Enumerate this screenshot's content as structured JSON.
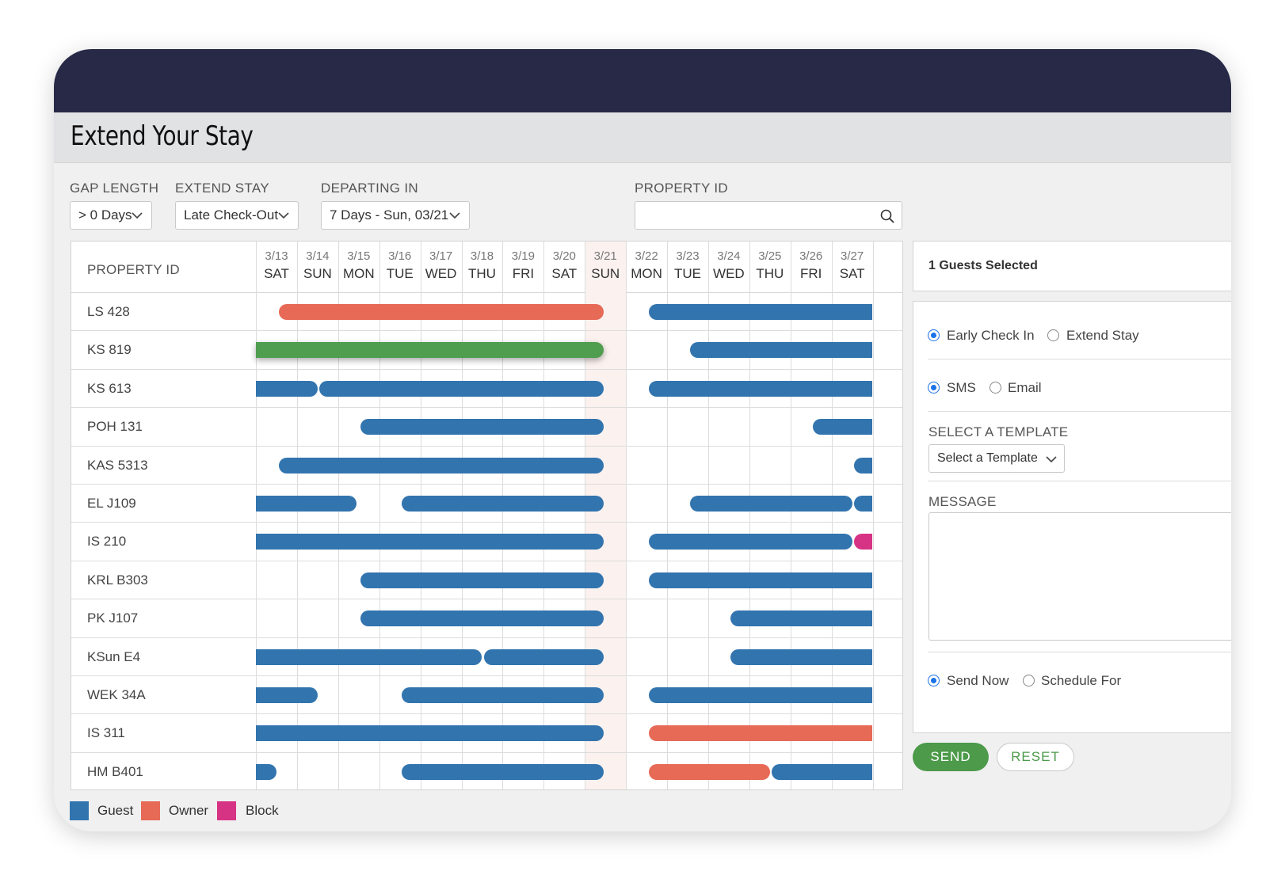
{
  "title": "Extend Your Stay",
  "filters": {
    "gap_length": {
      "label": "GAP LENGTH",
      "value": "> 0 Days"
    },
    "extend_stay": {
      "label": "EXTEND STAY",
      "value": "Late Check-Out"
    },
    "departing_in": {
      "label": "DEPARTING IN",
      "value": "7 Days - Sun, 03/21"
    },
    "property_id": {
      "label": "PROPERTY ID",
      "value": ""
    }
  },
  "grid": {
    "property_header": "PROPERTY ID",
    "highlight_day_index": 8,
    "days": [
      {
        "date": "3/13",
        "weekday": "SAT"
      },
      {
        "date": "3/14",
        "weekday": "SUN"
      },
      {
        "date": "3/15",
        "weekday": "MON"
      },
      {
        "date": "3/16",
        "weekday": "TUE"
      },
      {
        "date": "3/17",
        "weekday": "WED"
      },
      {
        "date": "3/18",
        "weekday": "THU"
      },
      {
        "date": "3/19",
        "weekday": "FRI"
      },
      {
        "date": "3/20",
        "weekday": "SAT"
      },
      {
        "date": "3/21",
        "weekday": "SUN"
      },
      {
        "date": "3/22",
        "weekday": "MON"
      },
      {
        "date": "3/23",
        "weekday": "TUE"
      },
      {
        "date": "3/24",
        "weekday": "WED"
      },
      {
        "date": "3/25",
        "weekday": "THU"
      },
      {
        "date": "3/26",
        "weekday": "FRI"
      },
      {
        "date": "3/27",
        "weekday": "SAT"
      }
    ],
    "rows": [
      {
        "id": "LS 428",
        "bookings": [
          {
            "type": "owner",
            "start": 0.55,
            "end": 8.45
          },
          {
            "type": "guest",
            "start": 9.55,
            "end": 15
          }
        ]
      },
      {
        "id": "KS 819",
        "bookings": [
          {
            "type": "selected",
            "start": 0,
            "end": 8.45
          },
          {
            "type": "guest",
            "start": 10.55,
            "end": 15
          }
        ]
      },
      {
        "id": "KS 613",
        "bookings": [
          {
            "type": "guest",
            "start": 0,
            "end": 1.5
          },
          {
            "type": "guest",
            "start": 1.55,
            "end": 8.45
          },
          {
            "type": "guest",
            "start": 9.55,
            "end": 15
          }
        ]
      },
      {
        "id": "POH 131",
        "bookings": [
          {
            "type": "guest",
            "start": 2.55,
            "end": 8.45
          },
          {
            "type": "guest",
            "start": 13.55,
            "end": 15
          }
        ]
      },
      {
        "id": "KAS 5313",
        "bookings": [
          {
            "type": "guest",
            "start": 0.55,
            "end": 8.45
          },
          {
            "type": "guest",
            "start": 14.55,
            "end": 15
          }
        ]
      },
      {
        "id": "EL J109",
        "bookings": [
          {
            "type": "guest",
            "start": 0,
            "end": 2.45
          },
          {
            "type": "guest",
            "start": 3.55,
            "end": 8.45
          },
          {
            "type": "guest",
            "start": 10.55,
            "end": 14.5
          },
          {
            "type": "guest",
            "start": 14.55,
            "end": 15
          }
        ]
      },
      {
        "id": "IS 210",
        "bookings": [
          {
            "type": "guest",
            "start": 0,
            "end": 8.45
          },
          {
            "type": "guest",
            "start": 9.55,
            "end": 14.5
          },
          {
            "type": "block",
            "start": 14.55,
            "end": 15
          }
        ]
      },
      {
        "id": "KRL B303",
        "bookings": [
          {
            "type": "guest",
            "start": 2.55,
            "end": 8.45
          },
          {
            "type": "guest",
            "start": 9.55,
            "end": 15
          }
        ]
      },
      {
        "id": "PK J107",
        "bookings": [
          {
            "type": "guest",
            "start": 2.55,
            "end": 8.45
          },
          {
            "type": "guest",
            "start": 11.55,
            "end": 15
          }
        ]
      },
      {
        "id": "KSun E4",
        "bookings": [
          {
            "type": "guest",
            "start": 0,
            "end": 5.5
          },
          {
            "type": "guest",
            "start": 5.55,
            "end": 8.45
          },
          {
            "type": "guest",
            "start": 11.55,
            "end": 15
          }
        ]
      },
      {
        "id": "WEK 34A",
        "bookings": [
          {
            "type": "guest",
            "start": 0,
            "end": 1.5
          },
          {
            "type": "guest",
            "start": 3.55,
            "end": 8.45
          },
          {
            "type": "guest",
            "start": 9.55,
            "end": 15
          }
        ]
      },
      {
        "id": "IS 311",
        "bookings": [
          {
            "type": "guest",
            "start": 0,
            "end": 8.45
          },
          {
            "type": "owner",
            "start": 9.55,
            "end": 15
          }
        ]
      },
      {
        "id": "HM B401",
        "bookings": [
          {
            "type": "guest",
            "start": 0,
            "end": 0.5
          },
          {
            "type": "guest",
            "start": 3.55,
            "end": 8.45
          },
          {
            "type": "owner",
            "start": 9.55,
            "end": 12.5
          },
          {
            "type": "guest",
            "start": 12.55,
            "end": 15
          }
        ]
      }
    ]
  },
  "legend": [
    {
      "label": "Guest",
      "color": "#3274ae"
    },
    {
      "label": "Owner",
      "color": "#e66a56"
    },
    {
      "label": "Block",
      "color": "#d63384"
    }
  ],
  "panel": {
    "guests_selected": "1 Guests Selected",
    "checkin_options": [
      {
        "label": "Early Check In",
        "checked": true
      },
      {
        "label": "Extend Stay",
        "checked": false
      }
    ],
    "channel_options": [
      {
        "label": "SMS",
        "checked": true
      },
      {
        "label": "Email",
        "checked": false
      }
    ],
    "template_label": "SELECT A TEMPLATE",
    "template_value": "Select a Template",
    "message_label": "MESSAGE",
    "message_value": "",
    "send_options": [
      {
        "label": "Send Now",
        "checked": true
      },
      {
        "label": "Schedule For",
        "checked": false
      }
    ]
  },
  "buttons": {
    "send": "SEND",
    "reset": "RESET"
  },
  "colors": {
    "guest": "#3274ae",
    "owner": "#e66a56",
    "block": "#d63384",
    "selected": "#4f9d4e",
    "header": "#272947"
  }
}
